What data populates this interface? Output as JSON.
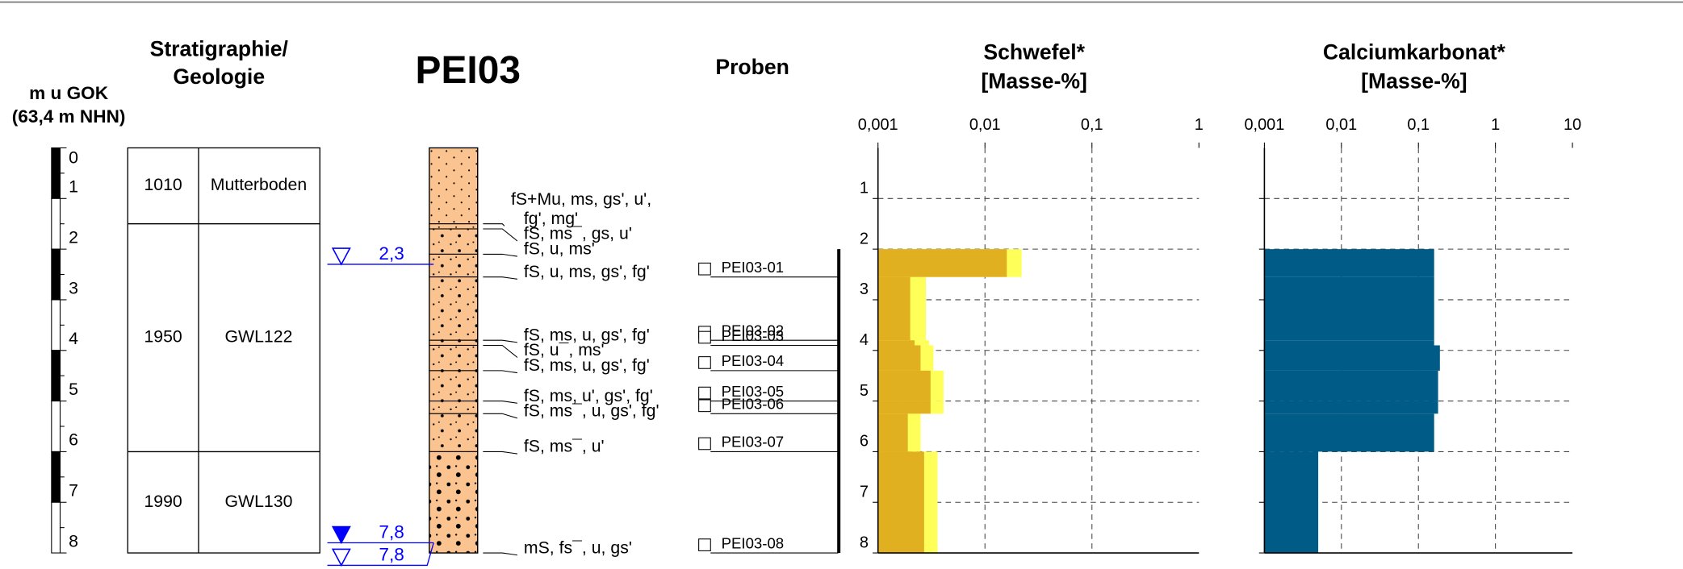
{
  "depth_axis": {
    "title": [
      "m u GOK",
      "(63,4 m NHN)"
    ],
    "lim": [
      0,
      8
    ],
    "ticks": [
      0,
      1,
      2,
      3,
      4,
      5,
      6,
      7,
      8
    ]
  },
  "stratigraphy": {
    "title": [
      "Stratigraphie/",
      "Geologie"
    ],
    "units": [
      {
        "code": "1010",
        "name": "Mutterboden",
        "from": 0,
        "to": 1.5
      },
      {
        "code": "1950",
        "name": "GWL122",
        "from": 1.5,
        "to": 6.0
      },
      {
        "code": "1990",
        "name": "GWL130",
        "from": 6.0,
        "to": 8.0
      }
    ]
  },
  "borehole": {
    "title": "PEI03",
    "color": "#fbc38f",
    "layers": [
      {
        "from": 0,
        "to": 1.5,
        "pattern": "fine",
        "description": [
          "fS+Mu, ms, gs', u',",
          "fg', mg'"
        ]
      },
      {
        "from": 1.5,
        "to": 1.6,
        "pattern": "medium",
        "description": [
          "fS, ms¯, gs, u'"
        ]
      },
      {
        "from": 1.6,
        "to": 2.1,
        "pattern": "medium",
        "description": [
          "fS, u, ms'"
        ]
      },
      {
        "from": 2.1,
        "to": 2.55,
        "pattern": "medium",
        "description": [
          "fS, u, ms, gs', fg'"
        ]
      },
      {
        "from": 2.55,
        "to": 3.8,
        "pattern": "medium",
        "description": [
          "fS, ms, u, gs', fg'"
        ]
      },
      {
        "from": 3.8,
        "to": 3.9,
        "pattern": "medium",
        "description": [
          "fS, u¯, ms'"
        ]
      },
      {
        "from": 3.9,
        "to": 4.4,
        "pattern": "medium",
        "description": [
          "fS, ms, u, gs', fg'"
        ]
      },
      {
        "from": 4.4,
        "to": 5.0,
        "pattern": "medium",
        "description": [
          "fS, ms, u', gs', fg'"
        ]
      },
      {
        "from": 5.0,
        "to": 5.25,
        "pattern": "medium",
        "description": [
          "fS, ms¯, u, gs', fg'"
        ]
      },
      {
        "from": 5.25,
        "to": 6.0,
        "pattern": "medium",
        "description": [
          "fS, ms¯, u'"
        ]
      },
      {
        "from": 6.0,
        "to": 8.0,
        "pattern": "coarse",
        "description": [
          "mS, fs¯, u, gs'"
        ]
      }
    ],
    "groundwater": [
      {
        "value": 2.3,
        "label": "2,3",
        "marker": "open"
      },
      {
        "value": 7.8,
        "label": "7,8",
        "marker": "filled"
      },
      {
        "value": 7.8,
        "label": "7,8",
        "marker": "open"
      }
    ]
  },
  "samples": {
    "title": "Proben",
    "items": [
      {
        "name": "PEI03-01",
        "from": 2.0,
        "to": 2.55
      },
      {
        "name": "PEI03-02",
        "from": 2.55,
        "to": 3.8
      },
      {
        "name": "PEI03-03",
        "from": 3.8,
        "to": 3.9
      },
      {
        "name": "PEI03-04",
        "from": 3.9,
        "to": 4.4
      },
      {
        "name": "PEI03-05",
        "from": 4.4,
        "to": 5.0
      },
      {
        "name": "PEI03-06",
        "from": 5.0,
        "to": 5.25
      },
      {
        "name": "PEI03-07",
        "from": 5.25,
        "to": 6.0
      },
      {
        "name": "PEI03-08",
        "from": 6.0,
        "to": 8.0
      }
    ]
  },
  "chart_data": [
    {
      "type": "bar",
      "title": [
        "Schwefel*",
        "[Masse-%]"
      ],
      "log_x": true,
      "grid": true,
      "xlim": [
        0.001,
        1
      ],
      "xticks": [
        {
          "value": 0.001,
          "label": "0,001"
        },
        {
          "value": 0.01,
          "label": "0,01"
        },
        {
          "value": 0.1,
          "label": "0,1"
        },
        1
      ],
      "ylim": [
        0,
        8
      ],
      "yticks": [
        1,
        2,
        3,
        4,
        5,
        6,
        7,
        8
      ],
      "ytick_labels": true,
      "series": [
        {
          "color": "#e1b020",
          "values": [
            0.016,
            0.002,
            0.0022,
            0.0025,
            0.0031,
            0.0031,
            0.0019,
            0.0027
          ]
        },
        {
          "color": "#ffff5a",
          "values": [
            0.022,
            0.0028,
            0.003,
            0.0033,
            0.0041,
            0.0041,
            0.0025,
            0.0036
          ]
        }
      ]
    },
    {
      "type": "bar",
      "title": [
        "Calciumkarbonat*",
        "[Masse-%]"
      ],
      "log_x": true,
      "grid": true,
      "xlim": [
        0.001,
        10
      ],
      "xticks": [
        {
          "value": 0.001,
          "label": "0,001"
        },
        {
          "value": 0.01,
          "label": "0,01"
        },
        {
          "value": 0.1,
          "label": "0,1"
        },
        1,
        10
      ],
      "ylim": [
        0,
        8
      ],
      "yticks": [
        1,
        2,
        3,
        4,
        5,
        6,
        7,
        8
      ],
      "ytick_labels": false,
      "series": [
        {
          "color": "#005b87",
          "values": [
            0.16,
            0.16,
            0.16,
            0.19,
            0.18,
            0.18,
            0.16,
            0.005
          ]
        }
      ]
    }
  ]
}
